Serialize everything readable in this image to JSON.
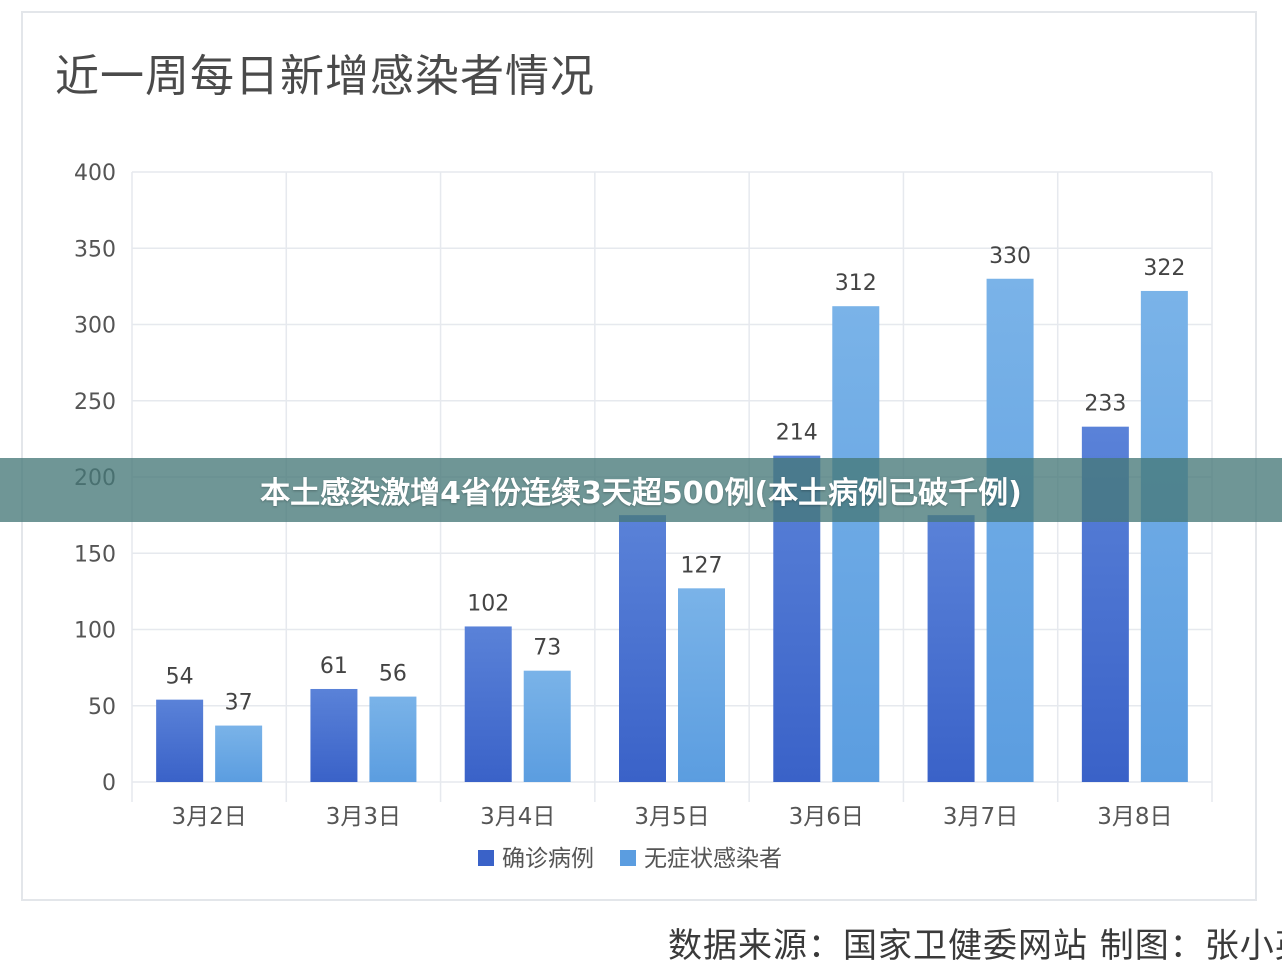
{
  "chart_data": {
    "type": "bar",
    "title": "近一周每日新增感染者情况",
    "categories": [
      "3月2日",
      "3月3日",
      "3月4日",
      "3月5日",
      "3月6日",
      "3月7日",
      "3月8日"
    ],
    "series": [
      {
        "name": "确诊病例",
        "values": [
          54,
          61,
          102,
          175,
          214,
          175,
          233
        ],
        "color": "#3a62c8"
      },
      {
        "name": "无症状感染者",
        "values": [
          37,
          56,
          73,
          127,
          312,
          330,
          322
        ],
        "color": "#5b9de0"
      }
    ],
    "value_labels": [
      [
        "54",
        "61",
        "102",
        "",
        "214",
        "",
        "233"
      ],
      [
        "37",
        "56",
        "73",
        "127",
        "312",
        "330",
        "322"
      ]
    ],
    "yticks": [
      0,
      50,
      100,
      150,
      200,
      250,
      300,
      350,
      400
    ],
    "ylim": [
      0,
      400
    ],
    "grid": true,
    "legend": "bottom"
  },
  "overlay": {
    "headline": "本土感染激增4省份连续3天超500例(本土病例已破千例)"
  },
  "footer": {
    "source": "数据来源：国家卫健委网站 制图：张小英"
  },
  "colors": {
    "axis_text": "#555555",
    "grid": "#e6e9ee",
    "banner": "#467878"
  }
}
